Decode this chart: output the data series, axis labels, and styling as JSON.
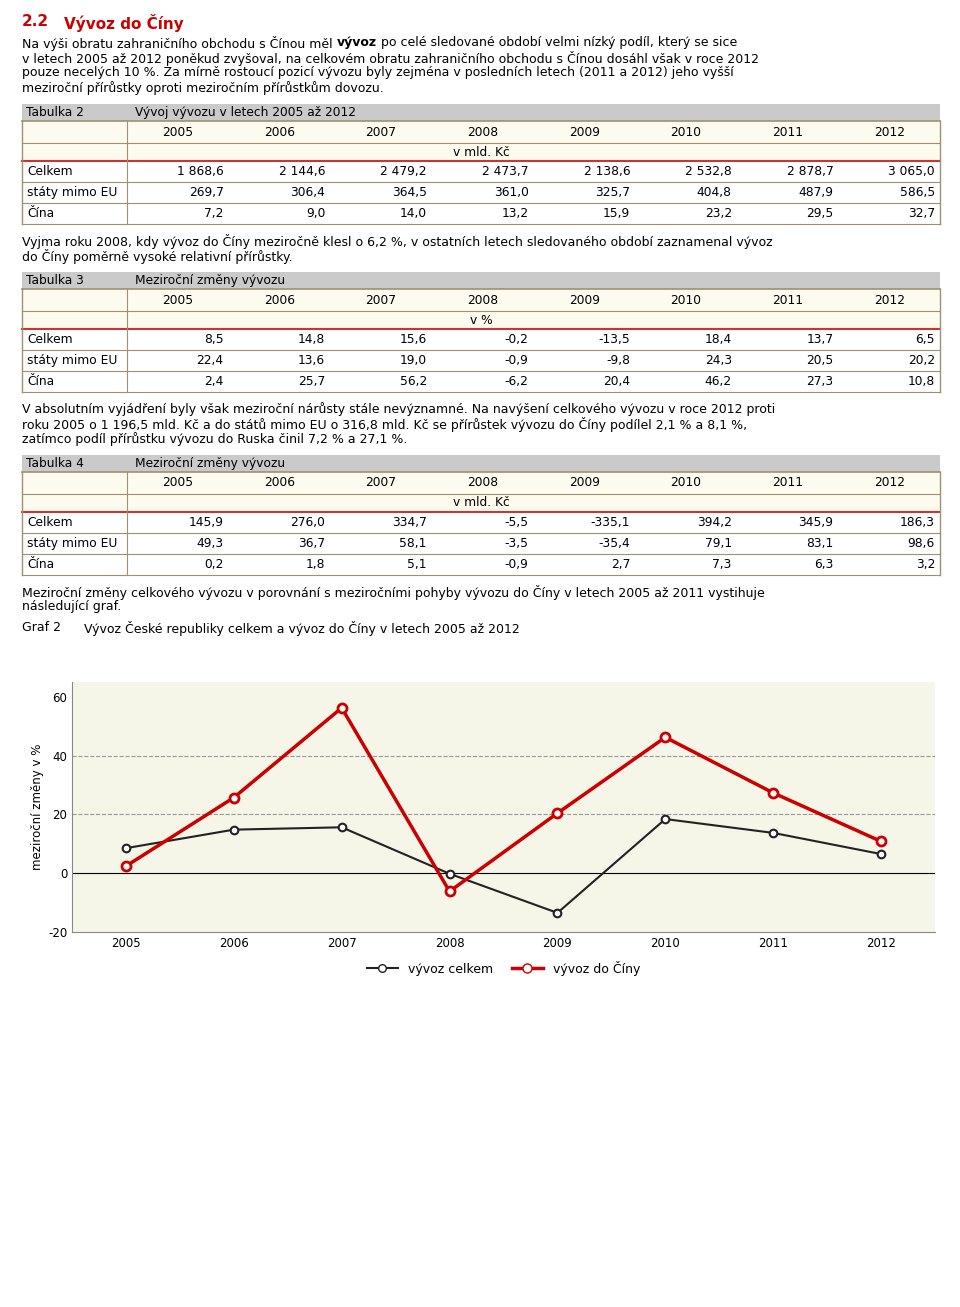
{
  "title_num": "2.2",
  "title_text": "Vývoz do Číny",
  "para1_parts": [
    [
      "Na výši obratu zahraničního obchodu s Čínou měl ",
      false,
      "vývoz",
      true,
      " po celé sledované období velmi nízký podíl, který se sice"
    ],
    [
      "v letech 2005 až 2012 poněkud zvyšoval, na celkovém obratu zahraničního obchodu s Čínou dosáhl však v roce 2012"
    ],
    [
      "pouze necelých 10 %. Za mírně rostoucí pozicí vývozu byly zejména v posledních letech (2011 a 2012) jeho vyšší"
    ],
    [
      "meziroční přírůstky oproti meziročním přírůstkům dovozu."
    ]
  ],
  "table2_label": "Tabulka 2",
  "table2_title": "Vývoj vývozu v letech 2005 až 2012",
  "table2_unit": "v mld. Kč",
  "table2_header": [
    "",
    "2005",
    "2006",
    "2007",
    "2008",
    "2009",
    "2010",
    "2011",
    "2012"
  ],
  "table2_rows": [
    [
      "Celkem",
      "1 868,6",
      "2 144,6",
      "2 479,2",
      "2 473,7",
      "2 138,6",
      "2 532,8",
      "2 878,7",
      "3 065,0"
    ],
    [
      "státy mimo EU",
      "269,7",
      "306,4",
      "364,5",
      "361,0",
      "325,7",
      "404,8",
      "487,9",
      "586,5"
    ],
    [
      "Čína",
      "7,2",
      "9,0",
      "14,0",
      "13,2",
      "15,9",
      "23,2",
      "29,5",
      "32,7"
    ]
  ],
  "para2": [
    "Vyjma roku 2008, kdy vývoz do Číny meziročně klesl o 6,2 %, v ostatních letech sledovaného období zaznamenal vývoz",
    "do Číny poměrně vysoké relativní přírůstky."
  ],
  "table3_label": "Tabulka 3",
  "table3_title": "Meziroční změny vývozu",
  "table3_unit": "v %",
  "table3_header": [
    "",
    "2005",
    "2006",
    "2007",
    "2008",
    "2009",
    "2010",
    "2011",
    "2012"
  ],
  "table3_rows": [
    [
      "Celkem",
      "8,5",
      "14,8",
      "15,6",
      "-0,2",
      "-13,5",
      "18,4",
      "13,7",
      "6,5"
    ],
    [
      "státy mimo EU",
      "22,4",
      "13,6",
      "19,0",
      "-0,9",
      "-9,8",
      "24,3",
      "20,5",
      "20,2"
    ],
    [
      "Čína",
      "2,4",
      "25,7",
      "56,2",
      "-6,2",
      "20,4",
      "46,2",
      "27,3",
      "10,8"
    ]
  ],
  "para3": [
    "V absolutním vyjádření byly však meziroční nárůsty stále nevýznamné. Na navýšení celkového vývozu v roce 2012 proti",
    "roku 2005 o 1 196,5 mld. Kč a do států mimo EU o 316,8 mld. Kč se přírůstek vývozu do Číny podílel 2,1 % a 8,1 %,",
    "zatímco podíl přírůstku vývozu do Ruska činil 7,2 % a 27,1 %."
  ],
  "table4_label": "Tabulka 4",
  "table4_title": "Meziroční změny vývozu",
  "table4_unit": "v mld. Kč",
  "table4_header": [
    "",
    "2005",
    "2006",
    "2007",
    "2008",
    "2009",
    "2010",
    "2011",
    "2012"
  ],
  "table4_rows": [
    [
      "Celkem",
      "145,9",
      "276,0",
      "334,7",
      "-5,5",
      "-335,1",
      "394,2",
      "345,9",
      "186,3"
    ],
    [
      "státy mimo EU",
      "49,3",
      "36,7",
      "58,1",
      "-3,5",
      "-35,4",
      "79,1",
      "83,1",
      "98,6"
    ],
    [
      "Čína",
      "0,2",
      "1,8",
      "5,1",
      "-0,9",
      "2,7",
      "7,3",
      "6,3",
      "3,2"
    ]
  ],
  "para4": [
    "Meziroční změny celkového vývozu v porovnání s meziročními pohyby vývozu do Číny v letech 2005 až 2011 vystihuje",
    "následující graf."
  ],
  "graf_label": "Graf 2",
  "graf_title": "Vývoz České republiky celkem a vývoz do Číny v letech 2005 až 2012",
  "years": [
    2005,
    2006,
    2007,
    2008,
    2009,
    2010,
    2011,
    2012
  ],
  "vyvoz_celkem": [
    8.5,
    14.8,
    15.6,
    -0.2,
    -13.5,
    18.4,
    13.7,
    6.5
  ],
  "vyvoz_cina": [
    2.4,
    25.7,
    56.2,
    -6.2,
    20.4,
    46.2,
    27.3,
    10.8
  ],
  "chart_bg": "#F5F5E8",
  "line_celkem_color": "#222222",
  "line_cina_color": "#CC0000",
  "grid_color": "#999999",
  "title_color": "#CC0000",
  "table_bg": "#FDFBEE",
  "table_header_bg": "#FDFBEE",
  "table_title_bg": "#CACACA",
  "border_color": "#A09070",
  "red_line_color": "#CC3333",
  "ylim": [
    -20,
    65
  ],
  "yticks": [
    -20,
    0,
    20,
    40,
    60
  ]
}
